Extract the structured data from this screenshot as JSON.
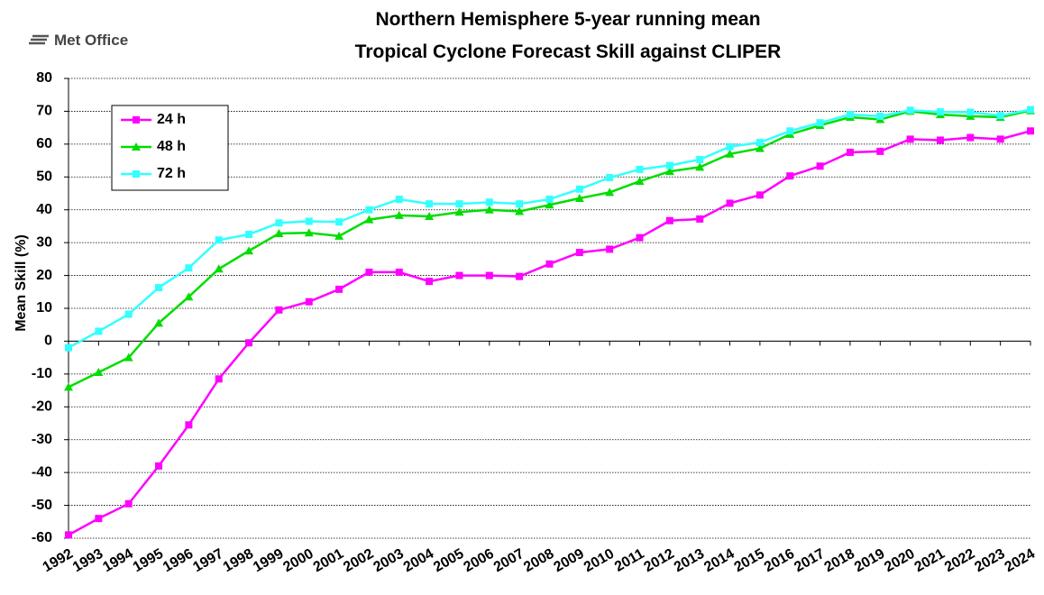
{
  "chart_data": {
    "type": "line",
    "title": "Northern Hemisphere 5-year running mean",
    "subtitle": "Tropical Cyclone Forecast Skill against CLIPER",
    "logo": "Met Office",
    "y_label": "Mean Skill (%)",
    "categories": [
      "1992",
      "1993",
      "1994",
      "1995",
      "1996",
      "1997",
      "1998",
      "1999",
      "2000",
      "2001",
      "2002",
      "2003",
      "2004",
      "2005",
      "2006",
      "2007",
      "2008",
      "2009",
      "2010",
      "2011",
      "2012",
      "2013",
      "2014",
      "2015",
      "2016",
      "2017",
      "2018",
      "2019",
      "2020",
      "2021",
      "2022",
      "2023",
      "2024"
    ],
    "series": [
      {
        "name": "24 h",
        "color": "#ff00ff",
        "marker": "square",
        "values": [
          -59,
          -54,
          -49.5,
          -38,
          -25.5,
          -11.5,
          -0.5,
          9.5,
          12,
          15.8,
          21,
          21,
          18.2,
          20,
          20,
          19.7,
          23.5,
          27,
          28,
          31.5,
          36.7,
          37.2,
          42,
          44.5,
          50.3,
          53.3,
          57.5,
          57.8,
          61.5,
          61.2,
          62,
          61.5,
          64
        ]
      },
      {
        "name": "48 h",
        "color": "#00dd00",
        "marker": "triangle",
        "values": [
          -14,
          -9.5,
          -5,
          5.5,
          13.5,
          22,
          27.5,
          32.8,
          33,
          32,
          37,
          38.3,
          38,
          39.3,
          40,
          39.5,
          41.5,
          43.5,
          45.3,
          48.7,
          51.7,
          53,
          57,
          58.7,
          63,
          65.7,
          68.2,
          67.5,
          70,
          69,
          68.5,
          68.2,
          70.2
        ]
      },
      {
        "name": "72 h",
        "color": "#33ffff",
        "marker": "square",
        "values": [
          -2,
          3,
          8.2,
          16.3,
          22.3,
          30.8,
          32.5,
          36,
          36.5,
          36.3,
          40,
          43.2,
          41.8,
          41.8,
          42.3,
          41.8,
          43.2,
          46.3,
          49.8,
          52.3,
          53.5,
          55.3,
          59.2,
          60.5,
          64,
          66.5,
          69,
          68.5,
          70.3,
          69.8,
          69.7,
          68.7,
          70.5
        ]
      }
    ],
    "ylim": [
      -60,
      80
    ],
    "yticks": [
      -60,
      -50,
      -40,
      -30,
      -20,
      -10,
      0,
      10,
      20,
      30,
      40,
      50,
      60,
      70,
      80
    ],
    "grid": true,
    "legend": "upper-left"
  }
}
